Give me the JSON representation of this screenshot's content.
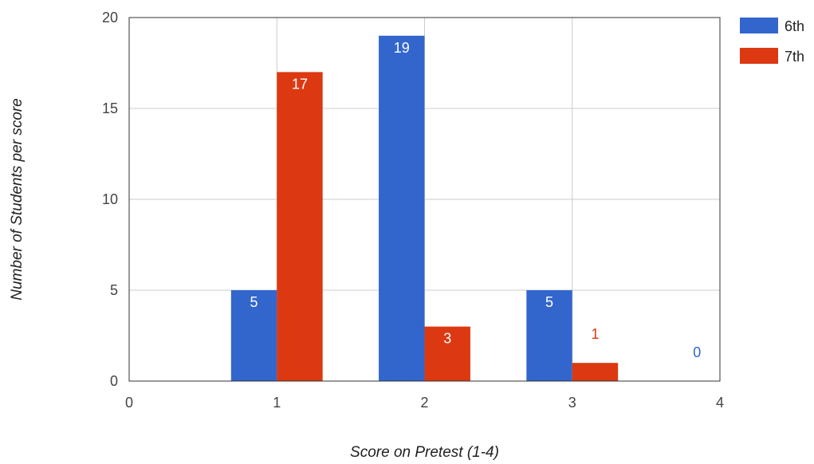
{
  "chart_data": {
    "type": "bar",
    "title": "",
    "xlabel": "Score on Pretest (1-4)",
    "ylabel": "Number of Students per score",
    "xlim": [
      0,
      4
    ],
    "ylim": [
      0,
      20
    ],
    "x_ticks": [
      "0",
      "1",
      "2",
      "3",
      "4"
    ],
    "y_ticks": [
      "0",
      "5",
      "10",
      "15",
      "20"
    ],
    "categories": [
      1,
      2,
      3,
      4
    ],
    "series": [
      {
        "name": "6th",
        "color": "#3366cc",
        "values": [
          5,
          19,
          5,
          0
        ]
      },
      {
        "name": "7th",
        "color": "#dc3912",
        "values": [
          17,
          3,
          1,
          null
        ]
      }
    ],
    "data_labels": [
      [
        "5",
        "19",
        "5",
        "0"
      ],
      [
        "17",
        "3",
        "1",
        ""
      ]
    ],
    "grid": true,
    "legend_position": "top-right"
  }
}
